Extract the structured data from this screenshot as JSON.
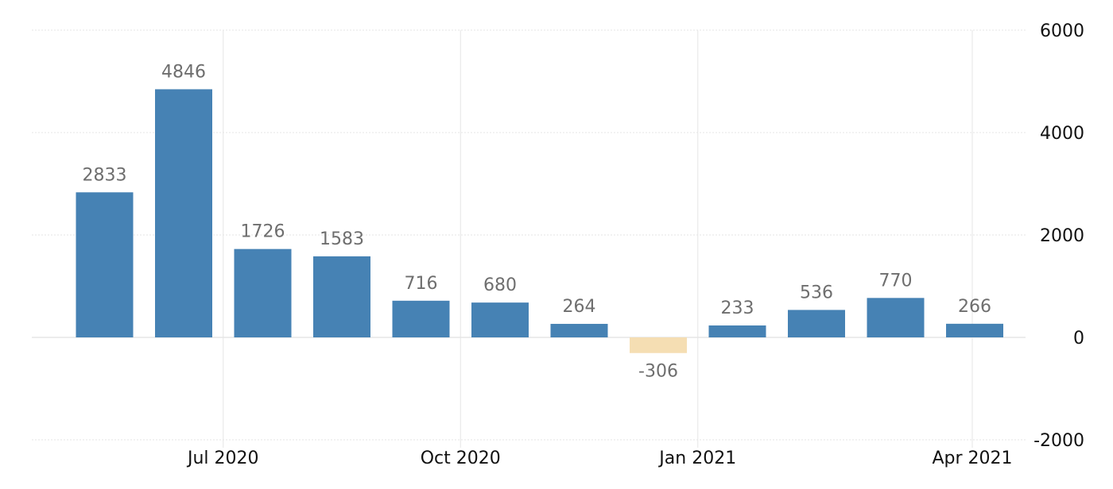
{
  "chart_data": {
    "type": "bar",
    "categories": [
      "2020-05",
      "2020-06",
      "2020-07",
      "2020-08",
      "2020-09",
      "2020-10",
      "2020-11",
      "2020-12",
      "2021-01",
      "2021-02",
      "2021-03",
      "2021-04"
    ],
    "values": [
      2833,
      4846,
      1726,
      1583,
      716,
      680,
      264,
      -306,
      233,
      536,
      770,
      266
    ],
    "data_labels": [
      "2833",
      "4846",
      "1726",
      "1583",
      "716",
      "680",
      "264",
      "-306",
      "233",
      "536",
      "770",
      "266"
    ],
    "x_tick_labels": [
      "Jul 2020",
      "Oct 2020",
      "Jan 2021",
      "Apr 2021"
    ],
    "y_ticks": [
      -2000,
      0,
      2000,
      4000,
      6000
    ],
    "y_tick_labels": [
      "-2000",
      "0",
      "2000",
      "4000",
      "6000"
    ],
    "ylim": [
      -2000,
      6000
    ],
    "title": "",
    "xlabel": "",
    "ylabel": "",
    "grid": true,
    "legend": "none",
    "colors": {
      "positive": "#4682b4",
      "negative": "#f5deb3",
      "grid": "#e6e6e6"
    }
  }
}
